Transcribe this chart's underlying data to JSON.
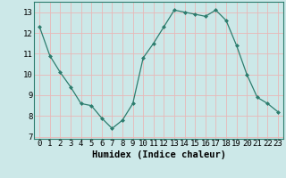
{
  "x": [
    0,
    1,
    2,
    3,
    4,
    5,
    6,
    7,
    8,
    9,
    10,
    11,
    12,
    13,
    14,
    15,
    16,
    17,
    18,
    19,
    20,
    21,
    22,
    23
  ],
  "y": [
    12.3,
    10.9,
    10.1,
    9.4,
    8.6,
    8.5,
    7.9,
    7.4,
    7.8,
    8.6,
    10.8,
    11.5,
    12.3,
    13.1,
    13.0,
    12.9,
    12.8,
    13.1,
    12.6,
    11.4,
    10.0,
    8.9,
    8.6,
    8.2
  ],
  "line_color": "#2d7d6e",
  "marker": "D",
  "marker_size": 2.0,
  "bg_color": "#cce8e8",
  "grid_color": "#e8b8b8",
  "xlabel": "Humidex (Indice chaleur)",
  "xlabel_fontsize": 7.5,
  "xlim": [
    -0.5,
    23.5
  ],
  "ylim": [
    6.9,
    13.5
  ],
  "yticks": [
    7,
    8,
    9,
    10,
    11,
    12,
    13
  ],
  "xtick_labels": [
    "0",
    "1",
    "2",
    "3",
    "4",
    "5",
    "6",
    "7",
    "8",
    "9",
    "10",
    "11",
    "12",
    "13",
    "14",
    "15",
    "16",
    "17",
    "18",
    "19",
    "20",
    "21",
    "22",
    "23"
  ],
  "tick_fontsize": 6.5,
  "spine_color": "#2d7d6e"
}
